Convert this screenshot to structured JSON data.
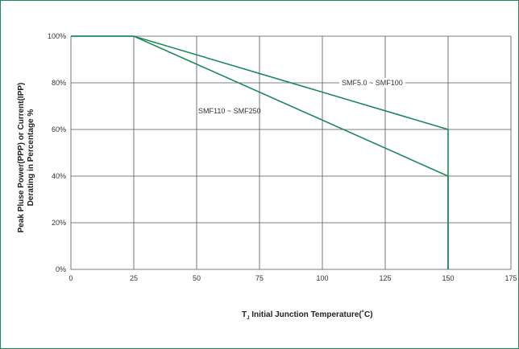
{
  "chart_data": {
    "type": "line",
    "xlabel_main": "T",
    "xlabel_sub": "J",
    "xlabel_rest": " Initial Junction Temperature(˚C)",
    "ylabel_line1": "Peak Pluse Power(PPP) or Current(IPP)",
    "ylabel_line2": "Derating in Percentage %",
    "x_ticks": [
      "0",
      "25",
      "50",
      "75",
      "100",
      "125",
      "150",
      "175"
    ],
    "y_ticks": [
      "0%",
      "20%",
      "40%",
      "60%",
      "80%",
      "100%"
    ],
    "xlim": [
      0,
      175
    ],
    "ylim": [
      0,
      100
    ],
    "grid": true,
    "colors": {
      "line": "#1b8a5a",
      "grid": "#555555",
      "frame": "#1b8a5a"
    },
    "series": [
      {
        "name": "SMF5.0 ~ SMF100",
        "points": [
          [
            0,
            100
          ],
          [
            25,
            100
          ],
          [
            150,
            60
          ],
          [
            150,
            0
          ]
        ]
      },
      {
        "name": "SMF110 ~ SMF250",
        "points": [
          [
            0,
            100
          ],
          [
            25,
            100
          ],
          [
            150,
            40
          ],
          [
            150,
            0
          ]
        ]
      }
    ]
  }
}
